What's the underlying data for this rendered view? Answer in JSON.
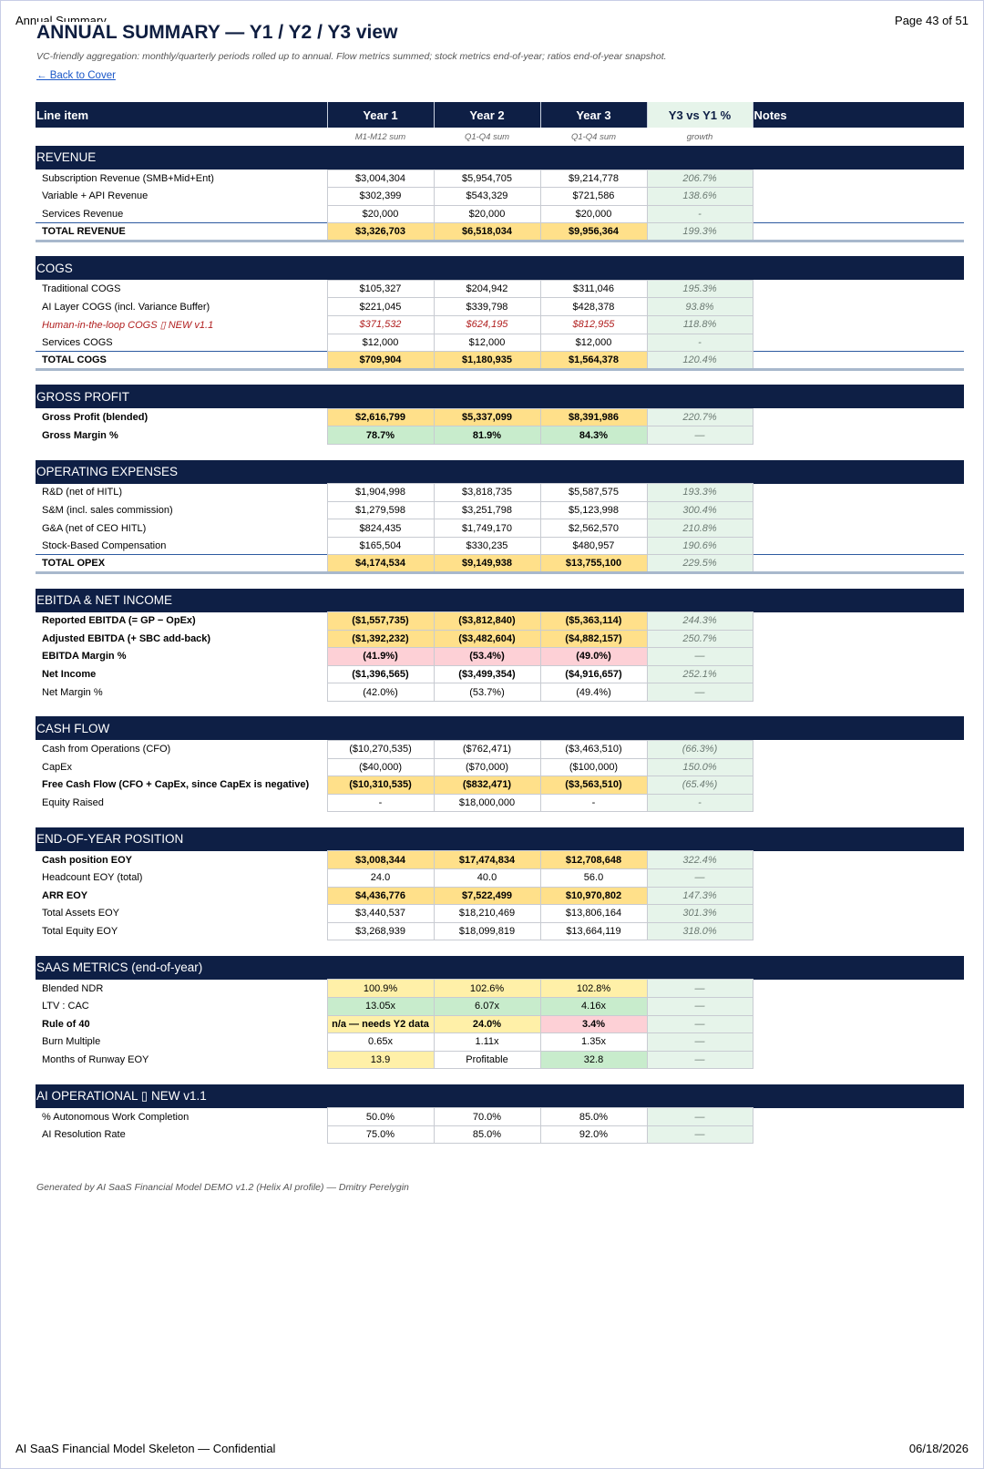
{
  "page": {
    "header_left": "Annual Summary",
    "header_right": "Page 43 of 51",
    "footer_left": "AI SaaS Financial Model Skeleton — Confidential",
    "footer_right": "06/18/2026"
  },
  "title": "ANNUAL SUMMARY — Y1 / Y2 / Y3 view",
  "subtitle": "VC-friendly aggregation: monthly/quarterly periods rolled up to annual. Flow metrics summed; stock metrics end-of-year; ratios end-of-year snapshot.",
  "back_link": "← Back to Cover",
  "columns": {
    "label": "Line item",
    "y1": "Year 1",
    "y2": "Year 2",
    "y3": "Year 3",
    "growth": "Y3 vs Y1 %",
    "notes": "Notes",
    "sub_y1": "M1-M12 sum",
    "sub_y2": "Q1-Q4 sum",
    "sub_y3": "Q1-Q4 sum",
    "sub_growth": "growth"
  },
  "sections": [
    {
      "title": "REVENUE",
      "rows": [
        {
          "label": "Subscription Revenue (SMB+Mid+Ent)",
          "y1": "$3,004,304",
          "y2": "$5,954,705",
          "y3": "$9,214,778",
          "growth": "206.7%"
        },
        {
          "label": "Variable + API Revenue",
          "y1": "$302,399",
          "y2": "$543,329",
          "y3": "$721,586",
          "growth": "138.6%"
        },
        {
          "label": "Services Revenue",
          "y1": "$20,000",
          "y2": "$20,000",
          "y3": "$20,000",
          "growth": "-"
        },
        {
          "label": "TOTAL REVENUE",
          "y1": "$3,326,703",
          "y2": "$6,518,034",
          "y3": "$9,956,364",
          "growth": "199.3%",
          "style": "total"
        }
      ]
    },
    {
      "title": "COGS",
      "rows": [
        {
          "label": "Traditional COGS",
          "y1": "$105,327",
          "y2": "$204,942",
          "y3": "$311,046",
          "growth": "195.3%"
        },
        {
          "label": "AI Layer COGS  (incl. Variance Buffer)",
          "y1": "$221,045",
          "y2": "$339,798",
          "y3": "$428,378",
          "growth": "93.8%"
        },
        {
          "label": "Human-in-the-loop COGS  ▯ NEW v1.1",
          "y1": "$371,532",
          "y2": "$624,195",
          "y3": "$812,955",
          "growth": "118.8%",
          "style": "new"
        },
        {
          "label": "Services COGS",
          "y1": "$12,000",
          "y2": "$12,000",
          "y3": "$12,000",
          "growth": "-"
        },
        {
          "label": "TOTAL COGS",
          "y1": "$709,904",
          "y2": "$1,180,935",
          "y3": "$1,564,378",
          "growth": "120.4%",
          "style": "total"
        }
      ]
    },
    {
      "title": "GROSS PROFIT",
      "rows": [
        {
          "label": "Gross Profit (blended)",
          "y1": "$2,616,799",
          "y2": "$5,337,099",
          "y3": "$8,391,986",
          "growth": "220.7%",
          "style": "bold",
          "fill": [
            "gold",
            "gold",
            "gold"
          ]
        },
        {
          "label": "Gross Margin %",
          "y1": "78.7%",
          "y2": "81.9%",
          "y3": "84.3%",
          "growth": "—",
          "style": "bold",
          "fill": [
            "green",
            "green",
            "green"
          ]
        }
      ]
    },
    {
      "title": "OPERATING EXPENSES",
      "rows": [
        {
          "label": "R&D  (net of HITL)",
          "y1": "$1,904,998",
          "y2": "$3,818,735",
          "y3": "$5,587,575",
          "growth": "193.3%"
        },
        {
          "label": "S&M  (incl. sales commission)",
          "y1": "$1,279,598",
          "y2": "$3,251,798",
          "y3": "$5,123,998",
          "growth": "300.4%"
        },
        {
          "label": "G&A  (net of CEO HITL)",
          "y1": "$824,435",
          "y2": "$1,749,170",
          "y3": "$2,562,570",
          "growth": "210.8%"
        },
        {
          "label": "Stock-Based Compensation",
          "y1": "$165,504",
          "y2": "$330,235",
          "y3": "$480,957",
          "growth": "190.6%"
        },
        {
          "label": "TOTAL OPEX",
          "y1": "$4,174,534",
          "y2": "$9,149,938",
          "y3": "$13,755,100",
          "growth": "229.5%",
          "style": "total"
        }
      ]
    },
    {
      "title": "EBITDA & NET INCOME",
      "rows": [
        {
          "label": "Reported EBITDA  (= GP − OpEx)",
          "y1": "($1,557,735)",
          "y2": "($3,812,840)",
          "y3": "($5,363,114)",
          "growth": "244.3%",
          "style": "bold",
          "fill": [
            "gold",
            "gold",
            "gold"
          ]
        },
        {
          "label": "Adjusted EBITDA  (+ SBC add-back)",
          "y1": "($1,392,232)",
          "y2": "($3,482,604)",
          "y3": "($4,882,157)",
          "growth": "250.7%",
          "style": "bold",
          "fill": [
            "gold",
            "gold",
            "gold"
          ]
        },
        {
          "label": "EBITDA Margin %",
          "y1": "(41.9%)",
          "y2": "(53.4%)",
          "y3": "(49.0%)",
          "growth": "—",
          "style": "bold",
          "fill": [
            "pink",
            "pink",
            "pink"
          ]
        },
        {
          "label": "Net Income",
          "y1": "($1,396,565)",
          "y2": "($3,499,354)",
          "y3": "($4,916,657)",
          "growth": "252.1%",
          "style": "bold"
        },
        {
          "label": "Net Margin %",
          "y1": "(42.0%)",
          "y2": "(53.7%)",
          "y3": "(49.4%)",
          "growth": "—"
        }
      ]
    },
    {
      "title": "CASH FLOW",
      "rows": [
        {
          "label": "Cash from Operations  (CFO)",
          "y1": "($10,270,535)",
          "y2": "($762,471)",
          "y3": "($3,463,510)",
          "growth": "(66.3%)"
        },
        {
          "label": "CapEx",
          "y1": "($40,000)",
          "y2": "($70,000)",
          "y3": "($100,000)",
          "growth": "150.0%"
        },
        {
          "label": "Free Cash Flow  (CFO + CapEx, since CapEx is negative)",
          "y1": "($10,310,535)",
          "y2": "($832,471)",
          "y3": "($3,563,510)",
          "growth": "(65.4%)",
          "style": "bold",
          "fill": [
            "gold",
            "gold",
            "gold"
          ]
        },
        {
          "label": "Equity Raised",
          "y1": "-",
          "y2": "$18,000,000",
          "y3": "-",
          "growth": "-"
        }
      ]
    },
    {
      "title": "END-OF-YEAR POSITION",
      "rows": [
        {
          "label": "Cash position EOY",
          "y1": "$3,008,344",
          "y2": "$17,474,834",
          "y3": "$12,708,648",
          "growth": "322.4%",
          "style": "bold",
          "fill": [
            "gold",
            "gold",
            "gold"
          ]
        },
        {
          "label": "Headcount EOY (total)",
          "y1": "24.0",
          "y2": "40.0",
          "y3": "56.0",
          "growth": "—"
        },
        {
          "label": "ARR EOY",
          "y1": "$4,436,776",
          "y2": "$7,522,499",
          "y3": "$10,970,802",
          "growth": "147.3%",
          "style": "bold",
          "fill": [
            "gold",
            "gold",
            "gold"
          ]
        },
        {
          "label": "Total Assets EOY",
          "y1": "$3,440,537",
          "y2": "$18,210,469",
          "y3": "$13,806,164",
          "growth": "301.3%"
        },
        {
          "label": "Total Equity EOY",
          "y1": "$3,268,939",
          "y2": "$18,099,819",
          "y3": "$13,664,119",
          "growth": "318.0%"
        }
      ]
    },
    {
      "title": "SAAS METRICS  (end-of-year)",
      "rows": [
        {
          "label": "Blended NDR",
          "y1": "100.9%",
          "y2": "102.6%",
          "y3": "102.8%",
          "growth": "—",
          "fill": [
            "ltgold",
            "ltgold",
            "ltgold"
          ]
        },
        {
          "label": "LTV : CAC",
          "y1": "13.05x",
          "y2": "6.07x",
          "y3": "4.16x",
          "growth": "—",
          "fill": [
            "green",
            "green",
            "green"
          ]
        },
        {
          "label": "Rule of 40",
          "y1": "n/a — needs Y2 data",
          "y2": "24.0%",
          "y3": "3.4%",
          "growth": "—",
          "style": "bold",
          "fill": [
            "ltgold",
            "ltgold",
            "pink"
          ]
        },
        {
          "label": "Burn Multiple",
          "y1": "0.65x",
          "y2": "1.11x",
          "y3": "1.35x",
          "growth": "—"
        },
        {
          "label": "Months of Runway EOY",
          "y1": "13.9",
          "y2": "Profitable",
          "y3": "32.8",
          "growth": "—",
          "fill": [
            "ltgold",
            "",
            "green"
          ]
        }
      ]
    },
    {
      "title": "AI OPERATIONAL  ▯ NEW v1.1",
      "rows": [
        {
          "label": "% Autonomous Work Completion",
          "y1": "50.0%",
          "y2": "70.0%",
          "y3": "85.0%",
          "growth": "—"
        },
        {
          "label": "AI Resolution Rate",
          "y1": "75.0%",
          "y2": "85.0%",
          "y3": "92.0%",
          "growth": "—"
        }
      ]
    }
  ],
  "footnote": "Generated by AI SaaS Financial Model DEMO v1.2 (Helix AI profile) — Dmitry Perelygin",
  "colors": {
    "header_navy": "#0e1f45",
    "total_gold": "#ffe08a",
    "light_gold": "#fff0a8",
    "good_green": "#c8eccc",
    "bad_pink": "#fdd0d6",
    "growth_col": "#e6f4ea",
    "new_red": "#b01e1e"
  }
}
